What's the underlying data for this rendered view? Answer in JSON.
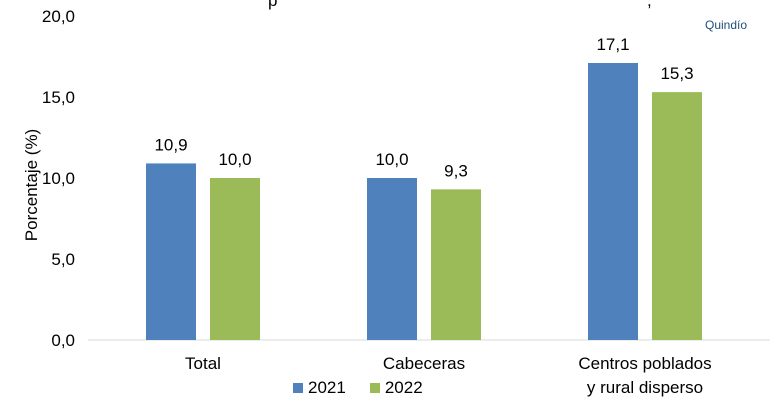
{
  "header_fragment": "p",
  "header_fragment_2": ",",
  "corner_label": "Quindío",
  "chart_data": {
    "type": "bar",
    "ylabel": "Porcentaje (%)",
    "ylim": [
      0,
      20
    ],
    "yticks": [
      "0,0",
      "5,0",
      "10,0",
      "15,0",
      "20,0"
    ],
    "ytick_values": [
      0,
      5,
      10,
      15,
      20
    ],
    "categories": [
      [
        "Total"
      ],
      [
        "Cabeceras"
      ],
      [
        "Centros poblados",
        "y rural disperso"
      ]
    ],
    "series": [
      {
        "name": "2021",
        "color": "#4f81bd",
        "values": [
          10.9,
          10.0,
          17.1
        ],
        "labels": [
          "10,9",
          "10,0",
          "17,1"
        ]
      },
      {
        "name": "2022",
        "color": "#9bbb59",
        "values": [
          10.0,
          9.3,
          15.3
        ],
        "labels": [
          "10,0",
          "9,3",
          "15,3"
        ]
      }
    ],
    "grid": false,
    "legend_position": "bottom"
  }
}
